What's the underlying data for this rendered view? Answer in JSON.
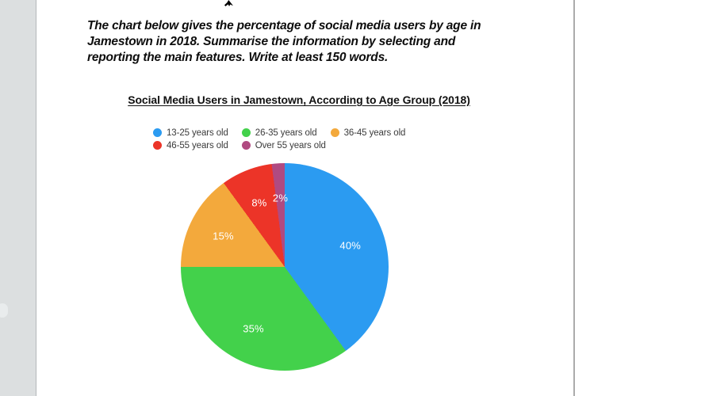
{
  "page": {
    "prompt_lines": [
      "The chart below gives the percentage of social media users by age in",
      "Jamestown in 2018. Summarise the information by selecting and",
      "reporting the main features. Write at least 150 words."
    ]
  },
  "chart_data": {
    "type": "pie",
    "title": "Social Media Users in Jamestown, According to Age Group (2018)",
    "categories": [
      "13-25 years old",
      "26-35 years old",
      "36-45 years old",
      "46-55 years old",
      "Over 55 years old"
    ],
    "values": [
      40,
      35,
      15,
      8,
      2
    ],
    "unit": "%",
    "data_labels": [
      "40%",
      "35%",
      "15%",
      "8%",
      "2%"
    ],
    "colors": [
      "#2b9bf1",
      "#43d14b",
      "#f3a93c",
      "#ec3428",
      "#b04a81"
    ],
    "start_angle_deg": 0,
    "direction": "clockwise",
    "legend_position": "top",
    "label_text_color": "#ffffff"
  }
}
